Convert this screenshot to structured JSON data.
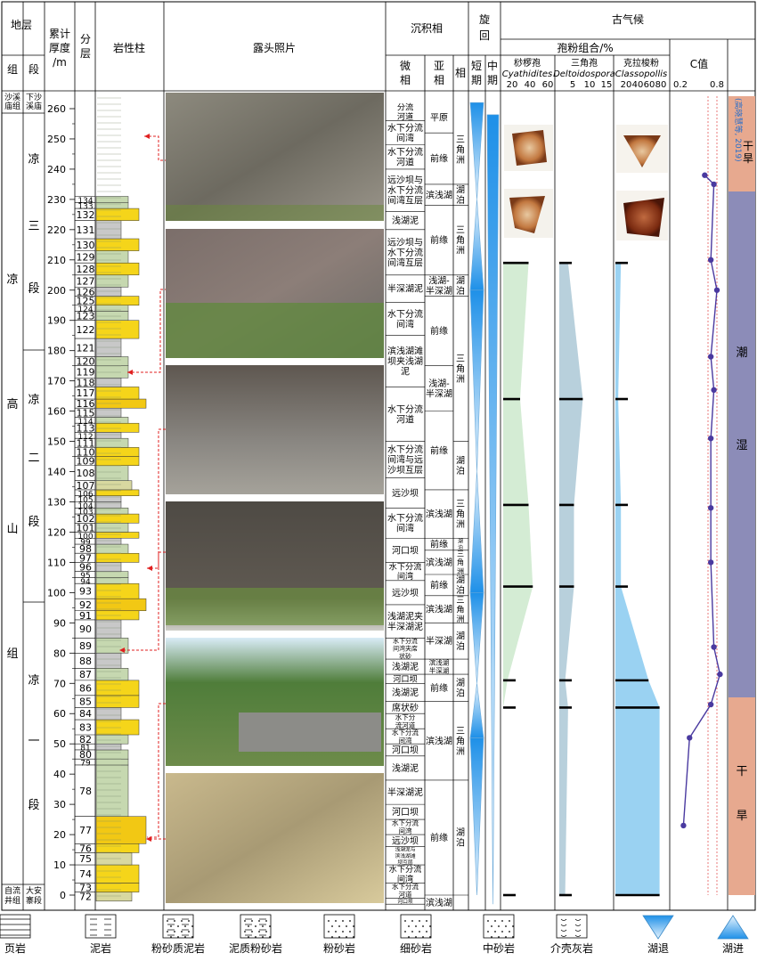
{
  "header": {
    "strata": "地层",
    "group": "组",
    "member": "段",
    "thickness": [
      "累计",
      "厚度",
      "/m"
    ],
    "layer": [
      "分",
      "层"
    ],
    "litho": "岩性柱",
    "photos": "露头照片",
    "facies": "沉积相",
    "micro": [
      "微",
      "相"
    ],
    "sub": [
      "亚",
      "相"
    ],
    "facies_short": "相",
    "cycle": [
      "旋",
      "回"
    ],
    "short": [
      "短",
      "期"
    ],
    "mid": [
      "中",
      "期"
    ],
    "climate": "古气候",
    "spore_group": "孢粉组合/%",
    "sp1_cn": "桫椤孢",
    "sp1_la": "Cyathidites",
    "sp2_cn": "三角孢",
    "sp2_la": "Deltoidospora",
    "sp3_cn": "克拉梭粉",
    "sp3_la": "Classopollis",
    "cval": "C值"
  },
  "ticks": {
    "sp1": [
      "20",
      "40",
      "60"
    ],
    "sp2": [
      "5",
      "10",
      "15"
    ],
    "sp3": [
      "20",
      "40",
      "60",
      "80"
    ],
    "cval": [
      "0.2",
      "0.8"
    ]
  },
  "strat": {
    "top_group": [
      "沙溪",
      "庙组"
    ],
    "top_member": [
      "下沙",
      "溪庙"
    ],
    "group_main": [
      "凉",
      "高",
      "山",
      "组"
    ],
    "mem3": [
      "凉",
      "三",
      "段"
    ],
    "mem2": [
      "凉",
      "二",
      "段"
    ],
    "mem1": [
      "凉",
      "一",
      "段"
    ],
    "bot_group": [
      "自流",
      "井组"
    ],
    "bot_member": [
      "大安",
      "寨段"
    ]
  },
  "depth_ticks": [
    "0",
    "10",
    "20",
    "30",
    "40",
    "50",
    "60",
    "70",
    "80",
    "90",
    "100",
    "110",
    "120",
    "130",
    "140",
    "150",
    "160",
    "170",
    "180",
    "190",
    "200",
    "210",
    "220",
    "230",
    "240",
    "250",
    "260"
  ],
  "layers": [
    "72",
    "73",
    "74",
    "75",
    "76",
    "77",
    "78",
    "79",
    "80",
    "81",
    "82",
    "83",
    "84",
    "85",
    "86",
    "87",
    "88",
    "89",
    "90",
    "91",
    "92",
    "93",
    "94",
    "95",
    "96",
    "97",
    "98",
    "99",
    "100",
    "101",
    "102",
    "103",
    "104",
    "105",
    "106",
    "107",
    "108",
    "109",
    "110",
    "111",
    "112",
    "113",
    "114",
    "115",
    "116",
    "117",
    "118",
    "119",
    "120",
    "121",
    "122",
    "123",
    "124",
    "125",
    "126",
    "127",
    "128",
    "129",
    "130",
    "131",
    "132",
    "133",
    "134"
  ],
  "micro": [
    "分流|河道",
    "水下分流|间湾",
    "水下分流|河道",
    "远沙坝与|水下分流|间湾互层",
    "浅湖泥",
    "远沙坝与|水下分流|间湾互层",
    "半深湖泥",
    "水下分流|间湾",
    "滨浅湖滩|坝夹浅湖|泥",
    "水下分流|河道",
    "水下分流|间湾与远|沙坝互层",
    "远沙坝",
    "水下分流|间湾",
    "河口坝",
    "水下分流|间湾",
    "远沙坝",
    "浅湖泥夹|半深湖泥",
    "水下分流|间湾夹席|状砂",
    "浅湖泥",
    "河口坝",
    "浅湖泥",
    "席状砂",
    "水下分|流河道",
    "水下分流|间湾",
    "河口坝",
    "浅湖泥",
    "半深湖泥",
    "河口坝",
    "水下分流|间湾",
    "远沙坝",
    "浅湖泥与|滨浅湖滩|坝互层",
    "水下分流|间湾",
    "水下分流|河道",
    "河口坝",
    "滨浅湖|滩坝",
    "介壳滩"
  ],
  "sub": [
    "平原",
    "前缘",
    "滨浅湖",
    "前缘",
    "浅湖-|半深湖",
    "前缘",
    "浅湖-|半深湖",
    "前缘",
    "滨浅湖",
    "前缘",
    "滨浅湖",
    "前缘",
    "滨浅湖",
    "半深湖",
    "滨浅湖|半深湖",
    "前缘",
    "滨浅湖",
    "前缘",
    "滨浅湖"
  ],
  "facies_col": [
    "三|角|洲",
    "湖|泊",
    "三|角|洲",
    "湖|泊",
    "三|角|洲",
    "湖|泊",
    "三|角|洲",
    "湖|泊",
    "三|角|洲",
    "湖|泊",
    "三|角|洲",
    "湖|泊",
    "三|角|洲",
    "湖|泊",
    "三|角|洲",
    "湖|泊"
  ],
  "climate_zones": {
    "top": "干|旱",
    "ref": "(高晓慧等, 2019)",
    "middle": "潮|湿",
    "bottom": "干|旱"
  },
  "legend": [
    "页岩",
    "泥岩",
    "粉砂质泥岩",
    "泥质粉砂岩",
    "粉砂岩",
    "细砂岩",
    "中砂岩",
    "介壳灰岩",
    "湖退",
    "湖进"
  ],
  "chart_data": {
    "type": "line",
    "depth_unit": "m",
    "sample_depths": [
      0,
      62,
      71,
      102,
      129,
      164,
      209
    ],
    "series": [
      {
        "name": "Cyathidites",
        "values": [
          0,
          0,
          5,
          35,
          30,
          20,
          30
        ]
      },
      {
        "name": "Deltoidospora",
        "values": [
          2,
          3,
          2,
          5,
          5,
          8,
          3
        ]
      },
      {
        "name": "Classopollis",
        "values": [
          80,
          80,
          60,
          10,
          10,
          5,
          10
        ]
      }
    ],
    "c_value": {
      "depth": [
        23,
        52,
        63,
        73,
        82,
        110,
        128,
        151,
        167,
        178,
        200,
        210,
        235,
        238
      ],
      "values": [
        0.25,
        0.35,
        0.7,
        0.85,
        0.75,
        0.7,
        0.7,
        0.7,
        0.75,
        0.7,
        0.8,
        0.7,
        0.75,
        0.6
      ]
    },
    "xlim_c": [
      0.2,
      0.9
    ]
  }
}
